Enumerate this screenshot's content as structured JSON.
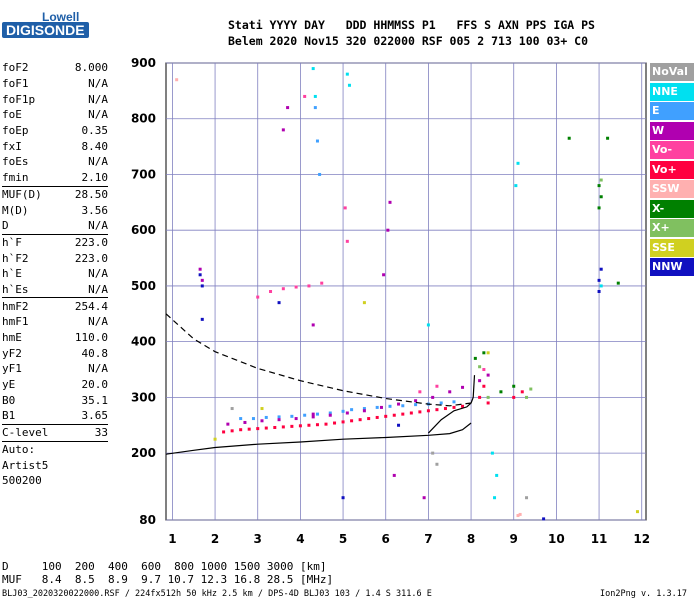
{
  "logo": {
    "company": "Lowell",
    "product": "DIGISONDE"
  },
  "header": {
    "line1": "Stati YYYY DAY   DDD HHMMSS P1   FFS S AXN PPS IGA PS",
    "line2": "Belem 2020 Nov15 320 022000 RSF 005 2 713 100 03+ C0"
  },
  "params": [
    {
      "name": "foF2",
      "value": "8.000"
    },
    {
      "name": "foF1",
      "value": "N/A"
    },
    {
      "name": "foF1p",
      "value": "N/A"
    },
    {
      "name": "foE",
      "value": "N/A"
    },
    {
      "name": "foEp",
      "value": "0.35"
    },
    {
      "name": "fxI",
      "value": "8.40"
    },
    {
      "name": "foEs",
      "value": "N/A"
    },
    {
      "name": "fmin",
      "value": "2.10"
    },
    {
      "sep": true
    },
    {
      "name": "MUF(D)",
      "value": "28.50"
    },
    {
      "name": "M(D)",
      "value": "3.56"
    },
    {
      "name": "D",
      "value": "N/A"
    },
    {
      "sep": true
    },
    {
      "name": "h`F",
      "value": "223.0"
    },
    {
      "name": "h`F2",
      "value": "223.0"
    },
    {
      "name": "h`E",
      "value": "N/A"
    },
    {
      "name": "h`Es",
      "value": "N/A"
    },
    {
      "sep": true
    },
    {
      "name": "hmF2",
      "value": "254.4"
    },
    {
      "name": "hmF1",
      "value": "N/A"
    },
    {
      "name": "hmE",
      "value": "110.0"
    },
    {
      "name": "yF2",
      "value": "40.8"
    },
    {
      "name": "yF1",
      "value": "N/A"
    },
    {
      "name": "yE",
      "value": "20.0"
    },
    {
      "name": "B0",
      "value": "35.1"
    },
    {
      "name": "B1",
      "value": "3.65"
    },
    {
      "sep": true
    },
    {
      "name": "C-level",
      "value": "33"
    },
    {
      "sep": true
    },
    {
      "name": "Auto:",
      "value": ""
    },
    {
      "name": "Artist5",
      "value": ""
    },
    {
      "name": "500200",
      "value": ""
    }
  ],
  "legend": [
    {
      "label": "NoVal",
      "color": "#a0a0a0"
    },
    {
      "label": "NNE",
      "color": "#00e0f0"
    },
    {
      "label": "E",
      "color": "#40a0ff"
    },
    {
      "label": "W",
      "color": "#b000b0"
    },
    {
      "label": "Vo-",
      "color": "#ff40a0"
    },
    {
      "label": "Vo+",
      "color": "#ff0040"
    },
    {
      "label": "SSW",
      "color": "#ffb0b0"
    },
    {
      "label": "X-",
      "color": "#008000"
    },
    {
      "label": "X+",
      "color": "#80c060"
    },
    {
      "label": "SSE",
      "color": "#d0d020"
    },
    {
      "label": "NNW",
      "color": "#1010c0"
    }
  ],
  "footer": {
    "d_row": "D     100  200  400  600  800 1000 1500 3000 [km]",
    "muf_row": "MUF   8.4  8.5  8.9  9.7 10.7 12.3 16.8 28.5 [MHz]",
    "file_info": "BLJ03_2020320022000.RSF / 224fx512h 50 kHz 2.5 km / DPS-4D BLJ03 103 / 1.4 S 311.6 E",
    "version": "Ion2Png v. 1.3.17"
  },
  "chart_data": {
    "type": "scatter",
    "title": "",
    "xlabel": "",
    "ylabel": "",
    "xlim": [
      0.85,
      12.1
    ],
    "ylim": [
      80,
      900
    ],
    "x_ticks": [
      1,
      2,
      3,
      4,
      5,
      6,
      7,
      8,
      9,
      10,
      11,
      12
    ],
    "y_ticks": [
      80,
      200,
      300,
      400,
      500,
      600,
      700,
      800,
      900
    ],
    "series": [
      {
        "name": "E",
        "color": "#40a0ff",
        "points": [
          [
            2.6,
            262
          ],
          [
            2.9,
            262
          ],
          [
            3.2,
            264
          ],
          [
            3.5,
            265
          ],
          [
            3.8,
            266
          ],
          [
            4.1,
            268
          ],
          [
            4.4,
            270
          ],
          [
            4.7,
            272
          ],
          [
            5.0,
            275
          ],
          [
            5.2,
            278
          ],
          [
            5.5,
            280
          ],
          [
            5.8,
            282
          ],
          [
            6.1,
            284
          ],
          [
            6.4,
            285
          ],
          [
            6.7,
            287
          ],
          [
            7.0,
            288
          ],
          [
            7.3,
            290
          ],
          [
            7.6,
            292
          ],
          [
            4.35,
            820
          ],
          [
            4.4,
            760
          ],
          [
            4.45,
            700
          ]
        ]
      },
      {
        "name": "Vo+",
        "color": "#ff0040",
        "points": [
          [
            2.2,
            238
          ],
          [
            2.4,
            240
          ],
          [
            2.6,
            242
          ],
          [
            2.8,
            243
          ],
          [
            3.0,
            244
          ],
          [
            3.2,
            245
          ],
          [
            3.4,
            246
          ],
          [
            3.6,
            247
          ],
          [
            3.8,
            248
          ],
          [
            4.0,
            249
          ],
          [
            4.2,
            250
          ],
          [
            4.4,
            251
          ],
          [
            4.6,
            252
          ],
          [
            4.8,
            254
          ],
          [
            5.0,
            256
          ],
          [
            5.2,
            258
          ],
          [
            5.4,
            260
          ],
          [
            5.6,
            262
          ],
          [
            5.8,
            264
          ],
          [
            6.0,
            266
          ],
          [
            6.2,
            268
          ],
          [
            6.4,
            270
          ],
          [
            6.6,
            272
          ],
          [
            6.8,
            274
          ],
          [
            7.0,
            276
          ],
          [
            7.2,
            278
          ],
          [
            7.4,
            280
          ],
          [
            7.6,
            282
          ],
          [
            7.8,
            284
          ],
          [
            8.2,
            300
          ],
          [
            8.3,
            320
          ],
          [
            8.4,
            290
          ],
          [
            9.0,
            300
          ],
          [
            9.2,
            310
          ]
        ]
      },
      {
        "name": "W",
        "color": "#b000b0",
        "points": [
          [
            2.3,
            252
          ],
          [
            2.7,
            255
          ],
          [
            3.1,
            258
          ],
          [
            3.5,
            260
          ],
          [
            3.9,
            262
          ],
          [
            4.3,
            265
          ],
          [
            4.7,
            268
          ],
          [
            5.1,
            272
          ],
          [
            5.5,
            276
          ],
          [
            5.9,
            282
          ],
          [
            6.3,
            288
          ],
          [
            6.7,
            294
          ],
          [
            7.1,
            300
          ],
          [
            7.5,
            310
          ],
          [
            7.8,
            318
          ],
          [
            8.2,
            330
          ],
          [
            8.4,
            340
          ],
          [
            6.1,
            650
          ],
          [
            6.05,
            600
          ],
          [
            5.95,
            520
          ],
          [
            4.3,
            270
          ],
          [
            1.7,
            510
          ],
          [
            1.65,
            530
          ],
          [
            3.6,
            780
          ],
          [
            3.7,
            820
          ],
          [
            4.3,
            430
          ],
          [
            6.2,
            160
          ],
          [
            6.9,
            120
          ]
        ]
      },
      {
        "name": "Vo-",
        "color": "#ff40a0",
        "points": [
          [
            3.0,
            480
          ],
          [
            3.3,
            490
          ],
          [
            3.6,
            495
          ],
          [
            3.9,
            498
          ],
          [
            4.2,
            500
          ],
          [
            4.5,
            505
          ],
          [
            4.1,
            840
          ],
          [
            5.05,
            640
          ],
          [
            5.1,
            580
          ],
          [
            6.8,
            310
          ],
          [
            7.2,
            320
          ],
          [
            8.3,
            350
          ]
        ]
      },
      {
        "name": "NNE",
        "color": "#00e0f0",
        "points": [
          [
            4.3,
            890
          ],
          [
            4.35,
            840
          ],
          [
            5.1,
            880
          ],
          [
            5.15,
            860
          ],
          [
            8.6,
            160
          ],
          [
            8.55,
            120
          ],
          [
            8.5,
            200
          ],
          [
            11.05,
            500
          ],
          [
            9.1,
            720
          ],
          [
            9.05,
            680
          ],
          [
            7.0,
            430
          ]
        ]
      },
      {
        "name": "X-",
        "color": "#008000",
        "points": [
          [
            8.3,
            380
          ],
          [
            9.0,
            320
          ],
          [
            11.0,
            680
          ],
          [
            11.05,
            660
          ],
          [
            11.0,
            640
          ],
          [
            11.2,
            765
          ],
          [
            10.3,
            765
          ],
          [
            8.1,
            370
          ],
          [
            11.45,
            505
          ],
          [
            8.7,
            310
          ]
        ]
      },
      {
        "name": "X+",
        "color": "#80c060",
        "points": [
          [
            8.4,
            300
          ],
          [
            9.3,
            300
          ],
          [
            11.05,
            690
          ],
          [
            8.2,
            355
          ],
          [
            9.4,
            315
          ]
        ]
      },
      {
        "name": "SSE",
        "color": "#d0d020",
        "points": [
          [
            2.0,
            225
          ],
          [
            3.1,
            280
          ],
          [
            5.5,
            470
          ],
          [
            8.4,
            380
          ],
          [
            11.9,
            95
          ]
        ]
      },
      {
        "name": "NNW",
        "color": "#1010c0",
        "points": [
          [
            1.65,
            520
          ],
          [
            1.7,
            500
          ],
          [
            1.7,
            440
          ],
          [
            3.5,
            470
          ],
          [
            11.0,
            510
          ],
          [
            11.0,
            490
          ],
          [
            11.05,
            530
          ],
          [
            9.7,
            82
          ],
          [
            5.0,
            120
          ],
          [
            6.3,
            250
          ]
        ]
      },
      {
        "name": "SSW",
        "color": "#ffb0b0",
        "points": [
          [
            9.1,
            88
          ],
          [
            9.15,
            90
          ],
          [
            1.1,
            870
          ]
        ]
      },
      {
        "name": "NoVal",
        "color": "#a0a0a0",
        "points": [
          [
            7.1,
            200
          ],
          [
            7.2,
            180
          ],
          [
            9.3,
            120
          ],
          [
            2.4,
            280
          ]
        ]
      }
    ],
    "lines": [
      {
        "name": "profile",
        "style": "solid",
        "points": [
          [
            0.85,
            198
          ],
          [
            1.5,
            205
          ],
          [
            2.0,
            210
          ],
          [
            3.0,
            216
          ],
          [
            4.0,
            220
          ],
          [
            5.0,
            225
          ],
          [
            6.0,
            228
          ],
          [
            7.0,
            232
          ],
          [
            7.5,
            235
          ],
          [
            7.8,
            242
          ],
          [
            8.0,
            254
          ]
        ]
      },
      {
        "name": "hF2 trace",
        "style": "solid",
        "points": [
          [
            7.0,
            236
          ],
          [
            7.3,
            260
          ],
          [
            7.6,
            276
          ],
          [
            7.9,
            283
          ],
          [
            8.0,
            290
          ],
          [
            8.05,
            300
          ],
          [
            8.08,
            340
          ]
        ]
      },
      {
        "name": "MUF curve",
        "style": "dashed",
        "points": [
          [
            0.85,
            450
          ],
          [
            1.5,
            405
          ],
          [
            2.0,
            382
          ],
          [
            3.0,
            352
          ],
          [
            4.0,
            330
          ],
          [
            5.0,
            312
          ],
          [
            6.0,
            298
          ],
          [
            7.0,
            288
          ],
          [
            7.5,
            285
          ],
          [
            8.0,
            290
          ]
        ]
      }
    ]
  }
}
